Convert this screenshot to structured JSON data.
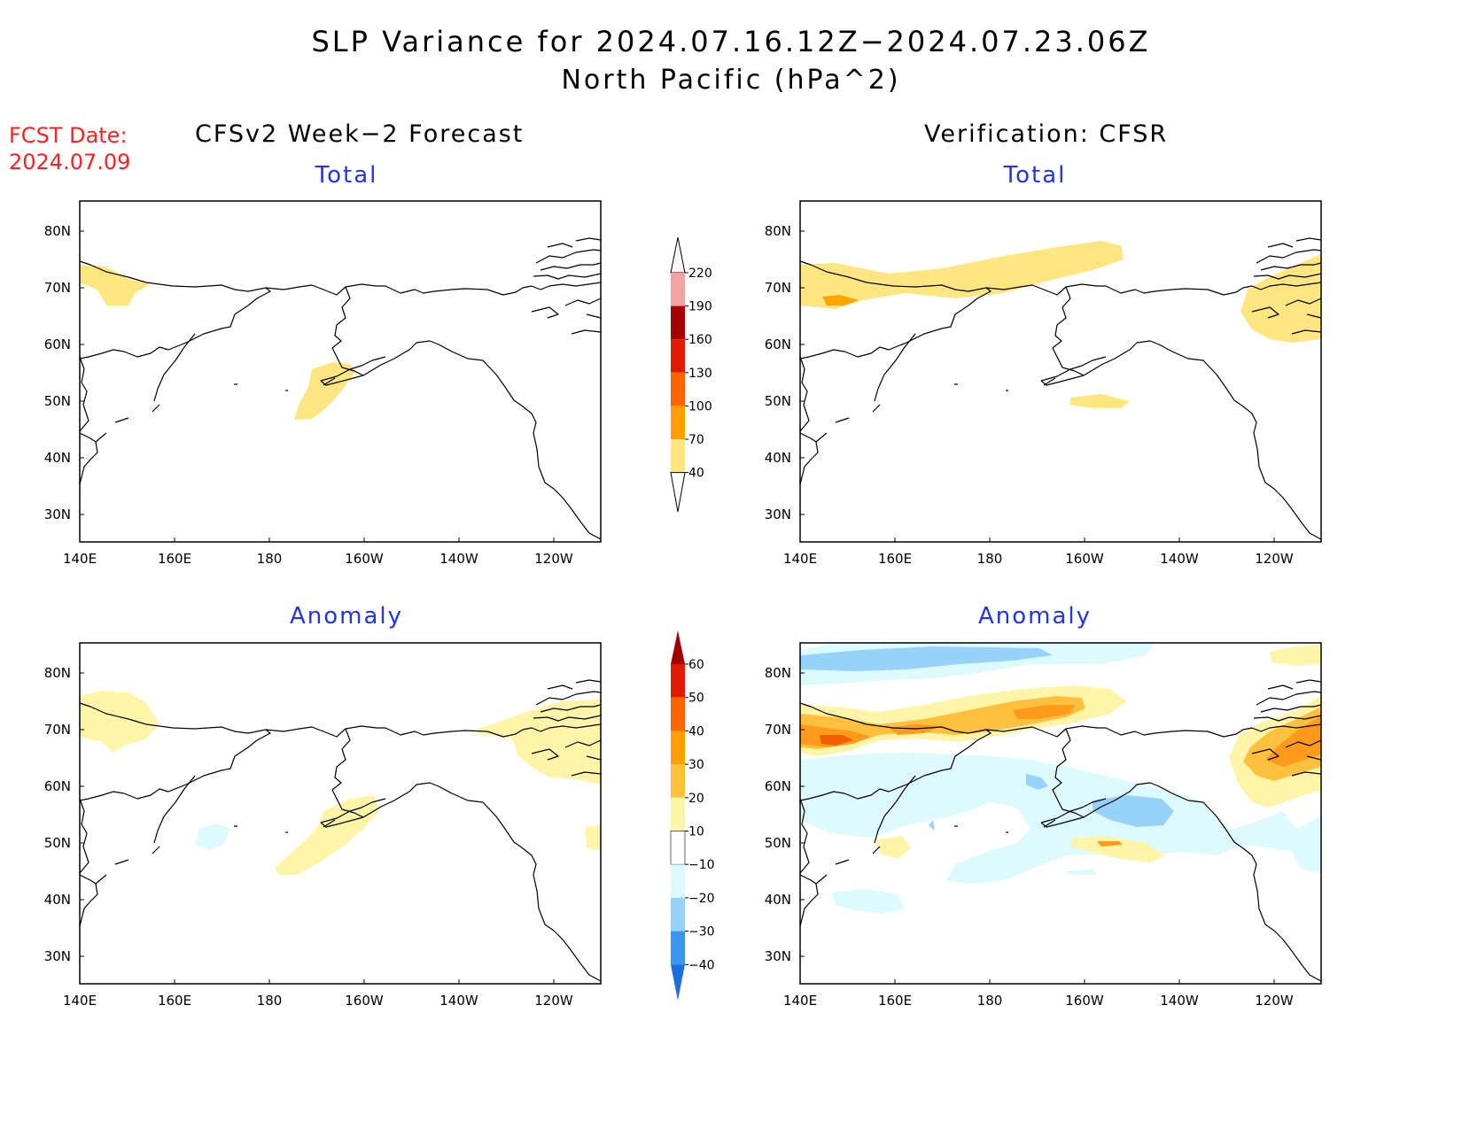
{
  "title": {
    "line1": "SLP Variance for 2024.07.16.12Z−2024.07.23.06Z",
    "line2": "North Pacific (hPa^2)"
  },
  "fcst_date": {
    "label": "FCST Date:",
    "value": "2024.07.09"
  },
  "columns": {
    "left": "CFSv2 Week−2 Forecast",
    "right": "Verification: CFSR"
  },
  "panel_titles": {
    "forecast_total": "Total",
    "verification_total": "Total",
    "forecast_anomaly": "Anomaly",
    "verification_anomaly": "Anomaly"
  },
  "map_axes": {
    "lon_labels": [
      "140E",
      "160E",
      "180",
      "160W",
      "140W",
      "120W"
    ],
    "lat_labels": [
      "80N",
      "70N",
      "60N",
      "50N",
      "40N",
      "30N"
    ]
  },
  "colors": {
    "land_outline": "#000000",
    "total_40_70": "#ffe680",
    "total_70_100": "#ffa500",
    "anom_10_20": "#fff5a8",
    "anom_20_30": "#ffc13d",
    "anom_30_40": "#ff9a1a",
    "anom_neg_10_20": "#dcfaff",
    "anom_neg_20_30": "#96d2fa"
  },
  "colorbars": {
    "total": {
      "labels": [
        "220",
        "190",
        "160",
        "130",
        "100",
        "70",
        "40"
      ],
      "colors": [
        "#fff0f0",
        "#f3a2a2",
        "#a50000",
        "#e01a00",
        "#ff6400",
        "#ffa000",
        "#ffe680"
      ]
    },
    "anomaly": {
      "labels": [
        "60",
        "50",
        "40",
        "30",
        "20",
        "10",
        "−10",
        "−20",
        "−30",
        "−40"
      ],
      "colors": [
        "#a50000",
        "#e01a00",
        "#ff6400",
        "#ffa000",
        "#ffc13d",
        "#fff5a8",
        "#ffffff",
        "#dcfaff",
        "#96d2fa",
        "#3a96ee",
        "#1e6edc"
      ]
    }
  }
}
